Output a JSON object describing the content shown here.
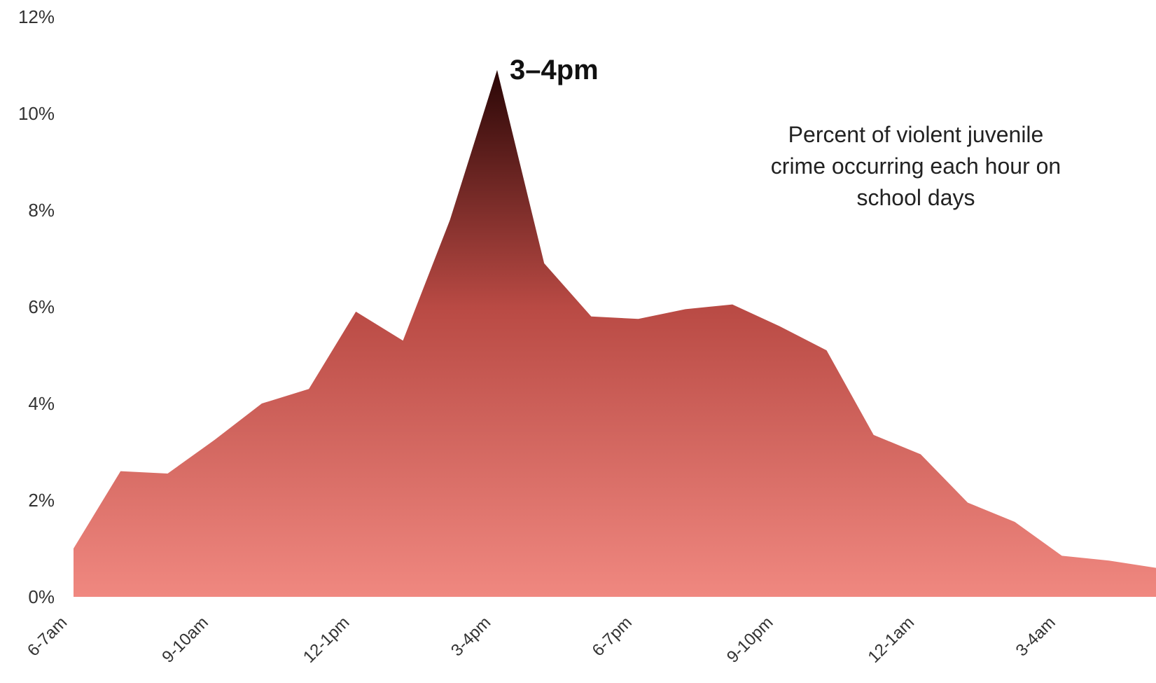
{
  "chart_data": {
    "type": "area",
    "title": "",
    "xlabel": "",
    "ylabel": "",
    "ylim": [
      0,
      12
    ],
    "grid": false,
    "legend": "none",
    "y_ticks": [
      "0%",
      "2%",
      "4%",
      "6%",
      "8%",
      "10%",
      "12%"
    ],
    "y_tick_values": [
      0,
      2,
      4,
      6,
      8,
      10,
      12
    ],
    "x_tick_labels": [
      "6-7am",
      "9-10am",
      "12-1pm",
      "3-4pm",
      "6-7pm",
      "9-10pm",
      "12-1am",
      "3-4am"
    ],
    "series": [
      {
        "values": [
          1.0,
          2.6,
          2.55,
          3.25,
          4.0,
          4.3,
          5.9,
          5.3,
          7.8,
          10.9,
          6.9,
          5.8,
          5.75,
          5.95,
          6.05,
          5.6,
          5.1,
          3.35,
          2.95,
          1.95,
          1.55,
          0.85,
          0.75,
          0.6
        ]
      }
    ],
    "colors": {
      "fill_top": "#2a0606",
      "fill_mid": "#b94a44",
      "fill_bottom": "#f08880"
    },
    "annotations": {
      "peak_label": "3–4pm",
      "description": [
        "Percent of violent juvenile",
        "crime occurring each hour on",
        "school days"
      ]
    }
  }
}
